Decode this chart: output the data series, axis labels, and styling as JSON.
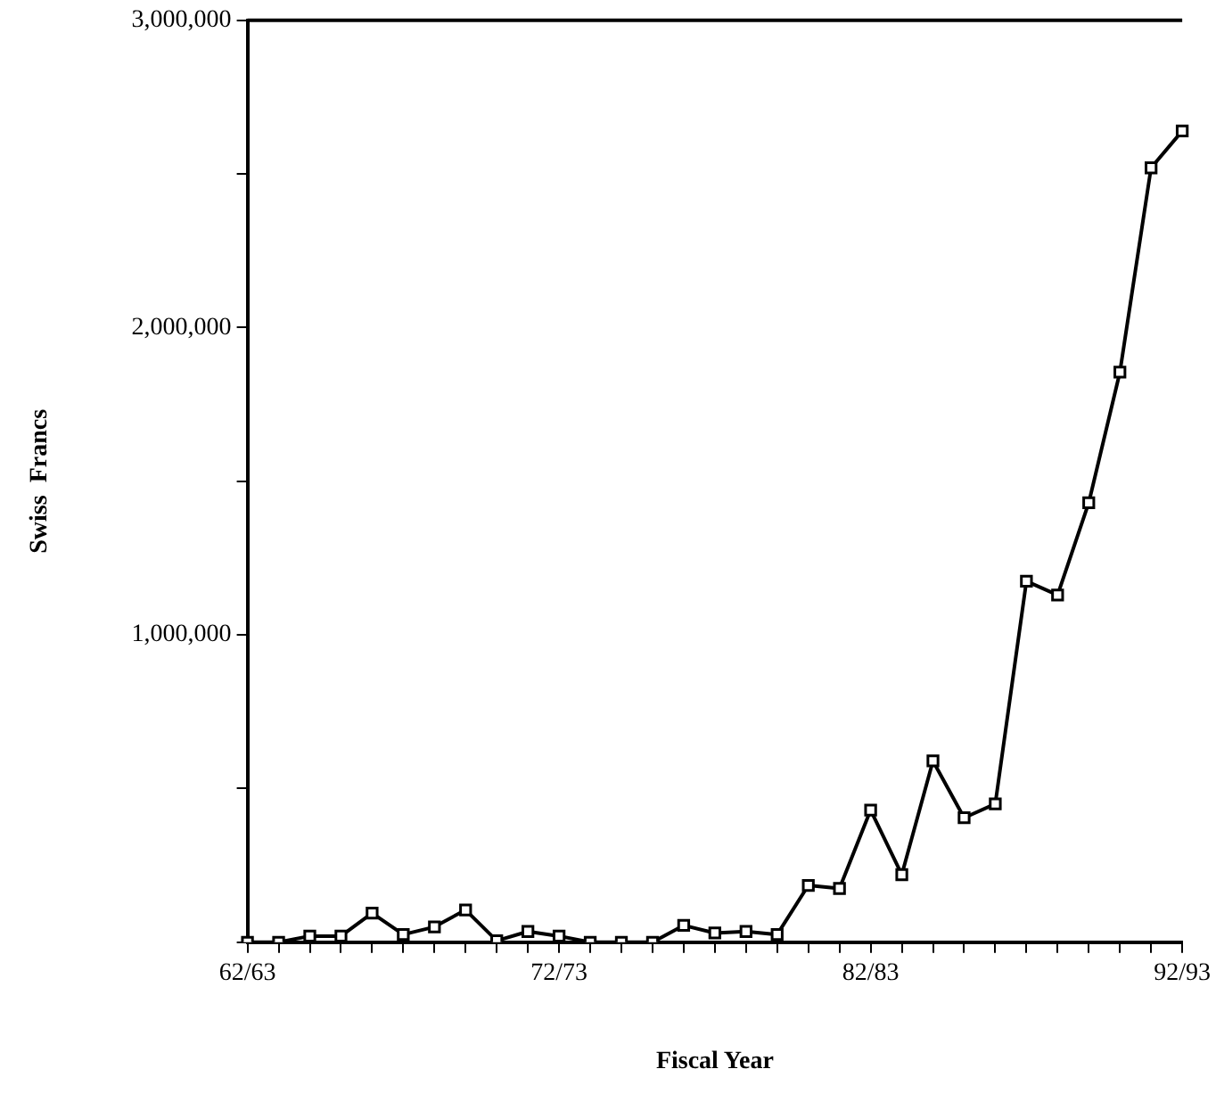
{
  "chart_data": {
    "type": "line",
    "xlabel": "Fiscal Year",
    "ylabel": "Swiss  Francs",
    "categories": [
      "62/63",
      null,
      null,
      null,
      null,
      null,
      null,
      null,
      null,
      null,
      "72/73",
      null,
      null,
      null,
      null,
      null,
      null,
      null,
      null,
      null,
      "82/83",
      null,
      null,
      null,
      null,
      null,
      null,
      null,
      null,
      null,
      "92/93"
    ],
    "series": [
      {
        "color": "#000000",
        "values": [
          0,
          0,
          20000,
          20000,
          95000,
          25000,
          50000,
          105000,
          5000,
          35000,
          20000,
          0,
          0,
          0,
          55000,
          30000,
          35000,
          25000,
          185000,
          175000,
          430000,
          220000,
          590000,
          405000,
          450000,
          1175000,
          1130000,
          1430000,
          1855000,
          2520000,
          2640000
        ]
      }
    ],
    "ylim": [
      0,
      3000000
    ],
    "yticks": [
      {
        "value": 0,
        "label": null
      },
      {
        "value": 500000,
        "label": null
      },
      {
        "value": 1000000,
        "label": "1,000,000"
      },
      {
        "value": 1500000,
        "label": null
      },
      {
        "value": 2000000,
        "label": "2,000,000"
      },
      {
        "value": 2500000,
        "label": null
      },
      {
        "value": 3000000,
        "label": "3,000,000"
      }
    ],
    "grid": false,
    "legend": false,
    "marker": "square",
    "line_style": "solid"
  }
}
